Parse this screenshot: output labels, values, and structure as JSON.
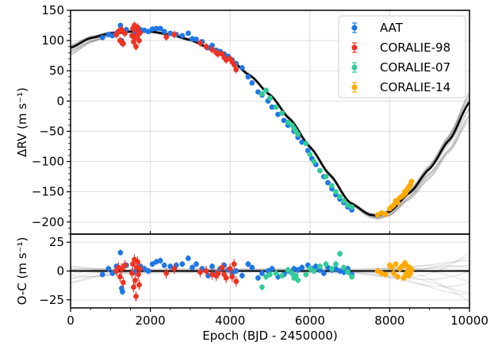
{
  "chart_data": [
    {
      "panel": "rv",
      "type": "scatter",
      "ylabel": "ΔRV (m s⁻¹)",
      "xlim": [
        0,
        10000
      ],
      "ylim": [
        -220,
        150
      ],
      "x_ticks": [
        0,
        2000,
        4000,
        6000,
        8000,
        10000
      ],
      "y_ticks": [
        150,
        100,
        50,
        0,
        -50,
        -100,
        -150,
        -200
      ],
      "y_tick_labels": [
        "150",
        "100",
        "50",
        "0",
        "−50",
        "−100",
        "−150",
        "−200"
      ],
      "grid": true,
      "legend_position": "top-right",
      "model_curve": {
        "color": "#000000",
        "x": [
          0,
          500,
          1000,
          1500,
          2000,
          2500,
          3000,
          3500,
          4000,
          4500,
          5000,
          5500,
          6000,
          6500,
          7000,
          7500,
          7700,
          8000,
          8500,
          9000,
          9500,
          10000
        ],
        "y": [
          88,
          104,
          112,
          115,
          115,
          110,
          101,
          87,
          68,
          42,
          10,
          -30,
          -76,
          -122,
          -168,
          -188,
          -190,
          -183,
          -152,
          -112,
          -64,
          -2
        ]
      },
      "series": [
        {
          "name": "AAT",
          "color": "#1f77e4",
          "x": [
            800,
            950,
            1050,
            1150,
            1250,
            1280,
            1300,
            1400,
            1600,
            1750,
            1850,
            1950,
            2050,
            2150,
            2250,
            2350,
            2500,
            2650,
            2800,
            2950,
            3050,
            3150,
            3300,
            3450,
            3550,
            3650,
            3750,
            3850,
            3950,
            4050,
            4150,
            4300,
            4450,
            4550,
            4700,
            4800,
            4950,
            5050,
            5200,
            5350,
            5450,
            5600,
            5700,
            5800,
            5950,
            6050,
            6150,
            6250,
            6350,
            6450,
            6550,
            6650,
            6750,
            6850,
            6950,
            7050
          ],
          "y": [
            105,
            110,
            108,
            112,
            125,
            100,
            95,
            118,
            113,
            118,
            117,
            115,
            119,
            120,
            120,
            115,
            112,
            110,
            108,
            112,
            103,
            102,
            98,
            88,
            92,
            84,
            82,
            78,
            74,
            68,
            62,
            55,
            40,
            30,
            15,
            10,
            0,
            -10,
            -22,
            -32,
            -40,
            -50,
            -60,
            -68,
            -82,
            -95,
            -105,
            -115,
            -125,
            -135,
            -145,
            -155,
            -162,
            -168,
            -175,
            -180
          ]
        },
        {
          "name": "CORALIE-98",
          "color": "#ee3322",
          "x": [
            1150,
            1200,
            1240,
            1280,
            1320,
            1360,
            1540,
            1560,
            1580,
            1600,
            1620,
            1640,
            1660,
            1680,
            1700,
            1720,
            1740,
            2400,
            2600,
            3250,
            3400,
            3550,
            3650,
            3700,
            3800,
            3850,
            3900,
            4000,
            4050,
            4100,
            4150
          ],
          "y": [
            110,
            115,
            100,
            118,
            95,
            112,
            108,
            120,
            98,
            125,
            105,
            90,
            116,
            122,
            110,
            100,
            113,
            106,
            110,
            96,
            90,
            85,
            80,
            78,
            78,
            72,
            68,
            70,
            65,
            60,
            52
          ]
        },
        {
          "name": "CORALIE-07",
          "color": "#33cc99",
          "x": [
            4800,
            4900,
            5000,
            5150,
            5300,
            5450,
            5550,
            5600,
            5650,
            5700,
            5900,
            6000,
            6100,
            6250,
            6400,
            6550,
            6650,
            6750,
            6850,
            6950,
            7050
          ],
          "y": [
            12,
            18,
            5,
            -10,
            -20,
            -35,
            -40,
            -45,
            -50,
            -55,
            -70,
            -88,
            -100,
            -115,
            -125,
            -140,
            -150,
            -158,
            -165,
            -172,
            -175
          ]
        },
        {
          "name": "CORALIE-14",
          "color": "#ffaa00",
          "x": [
            7700,
            7800,
            7900,
            8000,
            8050,
            8100,
            8150,
            8200,
            8250,
            8300,
            8350,
            8380,
            8400,
            8420,
            8450,
            8480,
            8500,
            8520,
            8550
          ],
          "y": [
            -188,
            -185,
            -187,
            -178,
            -175,
            -172,
            -165,
            -168,
            -160,
            -158,
            -155,
            -150,
            -152,
            -148,
            -145,
            -142,
            -140,
            -138,
            -133
          ]
        }
      ]
    },
    {
      "panel": "residuals",
      "type": "scatter",
      "xlabel": "Epoch (BJD - 2450000)",
      "ylabel": "O-C (m s⁻¹)",
      "xlim": [
        0,
        10000
      ],
      "ylim": [
        -32,
        32
      ],
      "x_ticks": [
        0,
        2000,
        4000,
        6000,
        8000,
        10000
      ],
      "y_ticks": [
        25,
        0,
        -25
      ],
      "y_tick_labels": [
        "25",
        "0",
        "−25"
      ],
      "grid": true,
      "zero_line": 0,
      "series": [
        {
          "name": "AAT",
          "color": "#1f77e4",
          "x": [
            800,
            950,
            1050,
            1150,
            1250,
            1280,
            1300,
            1400,
            1600,
            1750,
            1850,
            1950,
            2050,
            2150,
            2250,
            2350,
            2500,
            2650,
            2800,
            2950,
            3050,
            3150,
            3300,
            3450,
            3550,
            3650,
            3750,
            3850,
            3950,
            4050,
            4150,
            4300,
            4450,
            4550,
            4700,
            4800,
            4950,
            5050,
            5200,
            5350,
            5450,
            5600,
            5700,
            5800,
            5950,
            6050,
            6150,
            6250,
            6350,
            6450,
            6550,
            6650,
            6750,
            6850,
            6950,
            7050
          ],
          "y": [
            -3,
            2,
            -2,
            4,
            16,
            -15,
            -18,
            5,
            -1,
            4,
            2,
            0,
            6,
            8,
            9,
            5,
            4,
            5,
            6,
            11,
            3,
            6,
            2,
            -4,
            4,
            -2,
            2,
            5,
            1,
            -2,
            0,
            -4,
            6,
            3,
            -6,
            -2,
            0,
            2,
            -5,
            -3,
            0,
            2,
            1,
            3,
            5,
            2,
            4,
            1,
            -2,
            3,
            1,
            2,
            0,
            -1,
            2,
            -3
          ]
        },
        {
          "name": "CORALIE-98",
          "color": "#ee3322",
          "x": [
            1150,
            1200,
            1240,
            1280,
            1320,
            1360,
            1540,
            1560,
            1580,
            1600,
            1620,
            1640,
            1660,
            1680,
            1700,
            1720,
            1740,
            2400,
            2600,
            3250,
            3400,
            3550,
            3650,
            3700,
            3800,
            3850,
            3900,
            4000,
            4050,
            4100,
            4150
          ],
          "y": [
            0,
            3,
            -5,
            2,
            -10,
            5,
            -2,
            6,
            -14,
            10,
            -8,
            -22,
            3,
            8,
            -3,
            -12,
            2,
            -2,
            2,
            -1,
            0,
            -3,
            -4,
            -2,
            3,
            -3,
            -6,
            2,
            -5,
            6,
            -9
          ]
        },
        {
          "name": "CORALIE-07",
          "color": "#33cc99",
          "x": [
            4800,
            4900,
            5000,
            5150,
            5300,
            5450,
            5550,
            5600,
            5650,
            5700,
            5900,
            6000,
            6100,
            6250,
            6400,
            6550,
            6650,
            6750,
            6850,
            6950,
            7050
          ],
          "y": [
            -14,
            -5,
            -3,
            -2,
            -4,
            1,
            -2,
            -6,
            -4,
            -8,
            -3,
            2,
            0,
            4,
            6,
            2,
            6,
            15,
            3,
            -1,
            -5
          ]
        },
        {
          "name": "CORALIE-14",
          "color": "#ffaa00",
          "x": [
            7700,
            7800,
            7900,
            8000,
            8050,
            8100,
            8150,
            8200,
            8250,
            8300,
            8350,
            8380,
            8400,
            8420,
            8450,
            8480,
            8500,
            8520,
            8550
          ],
          "y": [
            0,
            -2,
            -3,
            5,
            3,
            -2,
            6,
            -5,
            2,
            4,
            -6,
            7,
            -3,
            5,
            0,
            -4,
            3,
            -2,
            1
          ]
        }
      ]
    }
  ]
}
